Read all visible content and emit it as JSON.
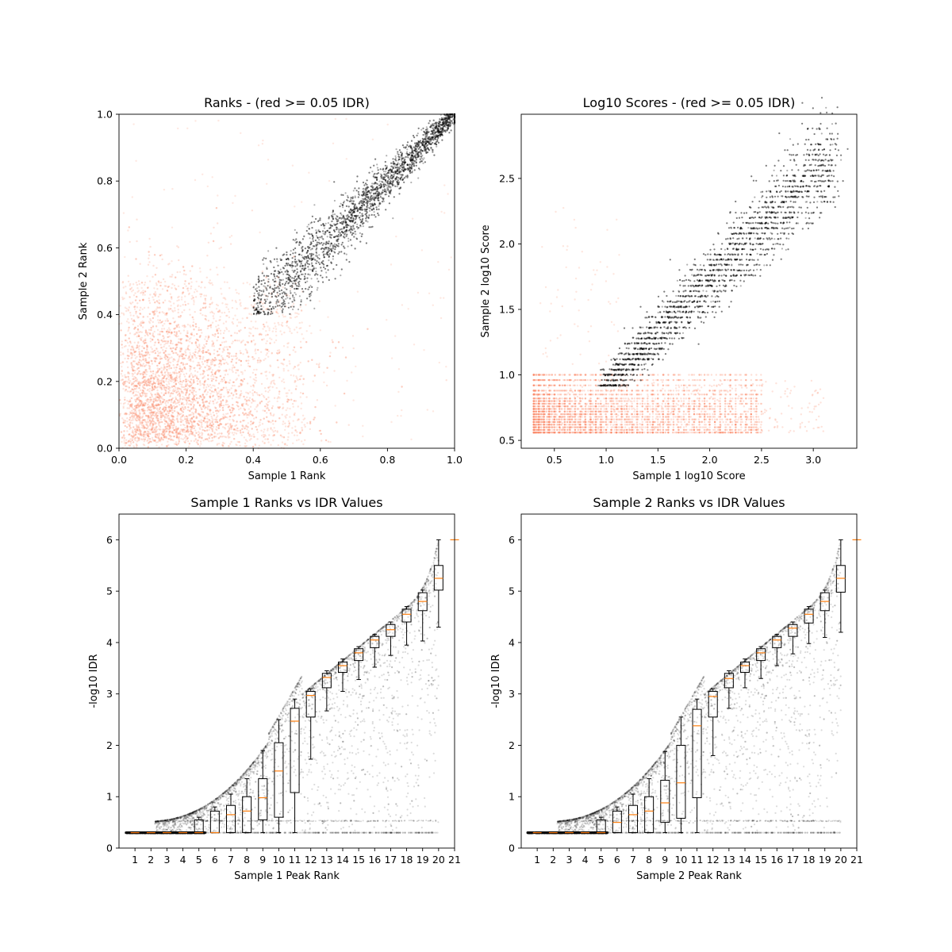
{
  "chart_data": [
    {
      "type": "scatter",
      "title": "Ranks - (red >= 0.05 IDR)",
      "xlabel": "Sample 1 Rank",
      "ylabel": "Sample 2 Rank",
      "xlim": [
        0.0,
        1.0
      ],
      "ylim": [
        0.0,
        1.0
      ],
      "xticks": [
        "0.0",
        "0.2",
        "0.4",
        "0.6",
        "0.8",
        "1.0"
      ],
      "yticks": [
        "0.0",
        "0.2",
        "0.4",
        "0.6",
        "0.8",
        "1.0"
      ],
      "series": [
        {
          "color": "#fc8d6a",
          "description_points": [
            [
              0.0,
              0.5
            ],
            [
              0.0,
              0.0
            ],
            [
              0.5,
              0.0
            ],
            [
              0.4,
              0.45
            ],
            [
              0.1,
              0.1
            ],
            [
              0.3,
              0.25
            ],
            [
              0.2,
              0.35
            ],
            [
              0.45,
              0.3
            ],
            [
              0.8,
              0.2
            ],
            [
              0.3,
              0.9
            ]
          ]
        },
        {
          "color": "#000000",
          "description_points": [
            [
              0.4,
              0.4
            ],
            [
              0.45,
              0.5
            ],
            [
              0.6,
              0.65
            ],
            [
              0.8,
              0.8
            ],
            [
              0.95,
              0.95
            ],
            [
              1.0,
              1.0
            ],
            [
              0.55,
              0.5
            ],
            [
              0.7,
              0.7
            ]
          ]
        }
      ]
    },
    {
      "type": "scatter",
      "title": "Log10 Scores - (red >= 0.05 IDR)",
      "xlabel": "Sample 1 log10 Score",
      "ylabel": "Sample 2 log10 Score",
      "xlim": [
        0.18,
        3.42
      ],
      "ylim": [
        0.44,
        2.99
      ],
      "xticks": [
        "0.5",
        "1.0",
        "1.5",
        "2.0",
        "2.5",
        "3.0"
      ],
      "yticks": [
        "0.5",
        "1.0",
        "1.5",
        "2.0",
        "2.5"
      ],
      "series": [
        {
          "color": "#fc8d6a",
          "description_points": [
            [
              0.3,
              0.56
            ],
            [
              0.3,
              1.0
            ],
            [
              1.0,
              0.56
            ],
            [
              2.0,
              0.56
            ],
            [
              3.0,
              0.56
            ],
            [
              1.5,
              0.8
            ],
            [
              2.5,
              0.95
            ],
            [
              0.6,
              2.3
            ]
          ]
        },
        {
          "color": "#000000",
          "description_points": [
            [
              1.0,
              0.9
            ],
            [
              1.3,
              1.2
            ],
            [
              1.8,
              1.5
            ],
            [
              2.2,
              1.8
            ],
            [
              2.6,
              2.1
            ],
            [
              2.8,
              2.4
            ],
            [
              3.1,
              2.7
            ],
            [
              2.0,
              1.1
            ]
          ]
        }
      ]
    },
    {
      "type": "box",
      "title": "Sample 1 Ranks vs IDR Values",
      "xlabel": "Sample 1 Peak Rank",
      "ylabel": "-log10 IDR",
      "xlim": [
        0,
        21
      ],
      "ylim": [
        0,
        6.5
      ],
      "xticks": [
        "1",
        "2",
        "3",
        "4",
        "5",
        "6",
        "7",
        "8",
        "9",
        "10",
        "11",
        "12",
        "13",
        "14",
        "15",
        "16",
        "17",
        "18",
        "19",
        "20",
        "21"
      ],
      "yticks": [
        "0",
        "1",
        "2",
        "3",
        "4",
        "5",
        "6"
      ],
      "boxes": [
        {
          "pos": 1,
          "q1": 0.3,
          "med": 0.3,
          "q3": 0.3,
          "lo": 0.3,
          "hi": 0.3
        },
        {
          "pos": 2,
          "q1": 0.3,
          "med": 0.3,
          "q3": 0.3,
          "lo": 0.3,
          "hi": 0.3
        },
        {
          "pos": 3,
          "q1": 0.3,
          "med": 0.3,
          "q3": 0.3,
          "lo": 0.3,
          "hi": 0.3
        },
        {
          "pos": 4,
          "q1": 0.3,
          "med": 0.3,
          "q3": 0.3,
          "lo": 0.3,
          "hi": 0.3
        },
        {
          "pos": 5,
          "q1": 0.3,
          "med": 0.3,
          "q3": 0.55,
          "lo": 0.3,
          "hi": 0.6
        },
        {
          "pos": 6,
          "q1": 0.3,
          "med": 0.3,
          "q3": 0.72,
          "lo": 0.3,
          "hi": 0.8
        },
        {
          "pos": 7,
          "q1": 0.3,
          "med": 0.65,
          "q3": 0.83,
          "lo": 0.3,
          "hi": 1.05
        },
        {
          "pos": 8,
          "q1": 0.3,
          "med": 0.72,
          "q3": 1.0,
          "lo": 0.3,
          "hi": 1.35
        },
        {
          "pos": 9,
          "q1": 0.55,
          "med": 0.98,
          "q3": 1.35,
          "lo": 0.3,
          "hi": 1.9
        },
        {
          "pos": 10,
          "q1": 0.6,
          "med": 1.5,
          "q3": 2.05,
          "lo": 0.3,
          "hi": 2.5
        },
        {
          "pos": 11,
          "q1": 1.08,
          "med": 2.47,
          "q3": 2.72,
          "lo": 0.3,
          "hi": 2.9
        },
        {
          "pos": 12,
          "q1": 2.55,
          "med": 2.97,
          "q3": 3.05,
          "lo": 1.73,
          "hi": 3.1
        },
        {
          "pos": 13,
          "q1": 3.12,
          "med": 3.32,
          "q3": 3.4,
          "lo": 2.67,
          "hi": 3.45
        },
        {
          "pos": 14,
          "q1": 3.42,
          "med": 3.55,
          "q3": 3.62,
          "lo": 3.05,
          "hi": 3.68
        },
        {
          "pos": 15,
          "q1": 3.65,
          "med": 3.8,
          "q3": 3.88,
          "lo": 3.28,
          "hi": 3.92
        },
        {
          "pos": 16,
          "q1": 3.9,
          "med": 4.05,
          "q3": 4.12,
          "lo": 3.52,
          "hi": 4.16
        },
        {
          "pos": 17,
          "q1": 4.12,
          "med": 4.25,
          "q3": 4.35,
          "lo": 3.75,
          "hi": 4.4
        },
        {
          "pos": 18,
          "q1": 4.4,
          "med": 4.55,
          "q3": 4.65,
          "lo": 3.95,
          "hi": 4.7
        },
        {
          "pos": 19,
          "q1": 4.62,
          "med": 4.8,
          "q3": 4.97,
          "lo": 4.03,
          "hi": 5.02
        },
        {
          "pos": 20,
          "q1": 5.02,
          "med": 5.25,
          "q3": 5.5,
          "lo": 4.3,
          "hi": 6.0
        },
        {
          "pos": 21,
          "q1": 6.0,
          "med": 6.0,
          "q3": 6.0,
          "lo": 6.0,
          "hi": 6.0
        }
      ]
    },
    {
      "type": "box",
      "title": "Sample 2 Ranks vs IDR Values",
      "xlabel": "Sample 2 Peak Rank",
      "ylabel": "-log10 IDR",
      "xlim": [
        0,
        21
      ],
      "ylim": [
        0,
        6.5
      ],
      "xticks": [
        "1",
        "2",
        "3",
        "4",
        "5",
        "6",
        "7",
        "8",
        "9",
        "10",
        "11",
        "12",
        "13",
        "14",
        "15",
        "16",
        "17",
        "18",
        "19",
        "20",
        "21"
      ],
      "yticks": [
        "0",
        "1",
        "2",
        "3",
        "4",
        "5",
        "6"
      ],
      "boxes": [
        {
          "pos": 1,
          "q1": 0.3,
          "med": 0.3,
          "q3": 0.3,
          "lo": 0.3,
          "hi": 0.3
        },
        {
          "pos": 2,
          "q1": 0.3,
          "med": 0.3,
          "q3": 0.3,
          "lo": 0.3,
          "hi": 0.3
        },
        {
          "pos": 3,
          "q1": 0.3,
          "med": 0.3,
          "q3": 0.3,
          "lo": 0.3,
          "hi": 0.3
        },
        {
          "pos": 4,
          "q1": 0.3,
          "med": 0.3,
          "q3": 0.3,
          "lo": 0.3,
          "hi": 0.3
        },
        {
          "pos": 5,
          "q1": 0.3,
          "med": 0.3,
          "q3": 0.55,
          "lo": 0.3,
          "hi": 0.6
        },
        {
          "pos": 6,
          "q1": 0.3,
          "med": 0.5,
          "q3": 0.72,
          "lo": 0.3,
          "hi": 0.8
        },
        {
          "pos": 7,
          "q1": 0.3,
          "med": 0.65,
          "q3": 0.83,
          "lo": 0.3,
          "hi": 1.05
        },
        {
          "pos": 8,
          "q1": 0.3,
          "med": 0.72,
          "q3": 1.0,
          "lo": 0.3,
          "hi": 1.35
        },
        {
          "pos": 9,
          "q1": 0.5,
          "med": 0.88,
          "q3": 1.32,
          "lo": 0.3,
          "hi": 1.88
        },
        {
          "pos": 10,
          "q1": 0.58,
          "med": 1.27,
          "q3": 2.0,
          "lo": 0.3,
          "hi": 2.55
        },
        {
          "pos": 11,
          "q1": 0.98,
          "med": 2.38,
          "q3": 2.7,
          "lo": 0.3,
          "hi": 2.9
        },
        {
          "pos": 12,
          "q1": 2.55,
          "med": 2.95,
          "q3": 3.05,
          "lo": 1.8,
          "hi": 3.1
        },
        {
          "pos": 13,
          "q1": 3.12,
          "med": 3.3,
          "q3": 3.4,
          "lo": 2.72,
          "hi": 3.45
        },
        {
          "pos": 14,
          "q1": 3.42,
          "med": 3.55,
          "q3": 3.62,
          "lo": 3.12,
          "hi": 3.68
        },
        {
          "pos": 15,
          "q1": 3.65,
          "med": 3.8,
          "q3": 3.88,
          "lo": 3.3,
          "hi": 3.92
        },
        {
          "pos": 16,
          "q1": 3.9,
          "med": 4.05,
          "q3": 4.12,
          "lo": 3.55,
          "hi": 4.16
        },
        {
          "pos": 17,
          "q1": 4.12,
          "med": 4.28,
          "q3": 4.35,
          "lo": 3.78,
          "hi": 4.4
        },
        {
          "pos": 18,
          "q1": 4.38,
          "med": 4.55,
          "q3": 4.65,
          "lo": 3.98,
          "hi": 4.7
        },
        {
          "pos": 19,
          "q1": 4.62,
          "med": 4.8,
          "q3": 4.97,
          "lo": 4.1,
          "hi": 5.02
        },
        {
          "pos": 20,
          "q1": 4.98,
          "med": 5.25,
          "q3": 5.5,
          "lo": 4.2,
          "hi": 6.0
        },
        {
          "pos": 21,
          "q1": 6.0,
          "med": 6.0,
          "q3": 6.0,
          "lo": 6.0,
          "hi": 6.0
        }
      ]
    }
  ]
}
